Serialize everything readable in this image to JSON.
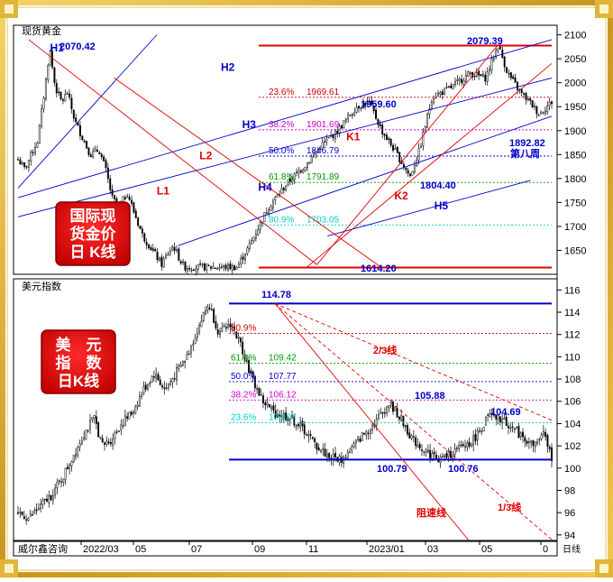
{
  "colors": {
    "frame_gold": "#d4a62a",
    "candle": "#000000",
    "red_line": "#e00000",
    "blue_line": "#0000c8",
    "badge_red": "#e00000",
    "badge_text": "#ffffff",
    "fib_236": "#cc0000",
    "fib_382": "#cc00cc",
    "fib_500": "#0000cc",
    "fib_618": "#009900",
    "fib_809": "#00cccc"
  },
  "chart_data": [
    {
      "type": "candlestick",
      "name": "gold",
      "panel_title": "现货黄金",
      "badge_lines": [
        "国际现",
        "货金价",
        "日 K线"
      ],
      "ylim": [
        1600,
        2120
      ],
      "y_ticks": [
        1650,
        1700,
        1750,
        1800,
        1850,
        1900,
        1950,
        2000,
        2050,
        2100
      ],
      "price_path": [
        [
          0,
          1840
        ],
        [
          0.03,
          1820
        ],
        [
          0.06,
          1850
        ],
        [
          0.09,
          1880
        ],
        [
          0.12,
          1980
        ],
        [
          0.145,
          2070
        ],
        [
          0.17,
          1990
        ],
        [
          0.2,
          1960
        ],
        [
          0.225,
          1980
        ],
        [
          0.26,
          1920
        ],
        [
          0.3,
          1880
        ],
        [
          0.33,
          1850
        ],
        [
          0.37,
          1860
        ],
        [
          0.4,
          1820
        ],
        [
          0.43,
          1760
        ],
        [
          0.46,
          1740
        ],
        [
          0.5,
          1770
        ],
        [
          0.53,
          1730
        ],
        [
          0.57,
          1680
        ],
        [
          0.6,
          1660
        ],
        [
          0.63,
          1640
        ],
        [
          0.655,
          1620
        ],
        [
          0.68,
          1640
        ],
        [
          0.71,
          1660
        ],
        [
          0.74,
          1630
        ],
        [
          0.76,
          1615
        ]
      ],
      "price_path_2": [
        [
          0,
          1615
        ],
        [
          0.04,
          1660
        ],
        [
          0.1,
          1740
        ],
        [
          0.16,
          1790
        ],
        [
          0.22,
          1830
        ],
        [
          0.27,
          1870
        ],
        [
          0.32,
          1900
        ],
        [
          0.38,
          1950
        ],
        [
          0.42,
          1960
        ],
        [
          0.46,
          1900
        ],
        [
          0.5,
          1860
        ],
        [
          0.55,
          1804
        ],
        [
          0.58,
          1860
        ],
        [
          0.62,
          1970
        ],
        [
          0.68,
          1990
        ],
        [
          0.74,
          2020
        ],
        [
          0.79,
          2010
        ],
        [
          0.83,
          2079
        ],
        [
          0.86,
          2020
        ],
        [
          0.9,
          1980
        ],
        [
          0.93,
          1960
        ],
        [
          0.96,
          1935
        ],
        [
          1.0,
          1960
        ]
      ],
      "labels": {
        "high_left": "2070.42",
        "high_right": "2079.39",
        "low_bottom": "1614.20",
        "low_mid": "1804.40",
        "pivot": "1959.60",
        "recent_low": "1892.82",
        "week_note": "第八周"
      },
      "fib_levels": [
        {
          "pct": "23.6%",
          "value": 1969.61,
          "label": "1969.61",
          "color_key": "fib_236"
        },
        {
          "pct": "38.2%",
          "value": 1901.69,
          "label": "1901.69",
          "color_key": "fib_382"
        },
        {
          "pct": "50.0%",
          "value": 1846.79,
          "label": "1846.79",
          "color_key": "fib_500"
        },
        {
          "pct": "61.8%",
          "value": 1791.89,
          "label": "1791.89",
          "color_key": "fib_618"
        },
        {
          "pct": "80.9%",
          "value": 1703.05,
          "label": "1703.05",
          "color_key": "fib_809"
        }
      ],
      "trendlines": [
        {
          "label": "H1",
          "color_key": "blue_line",
          "p1": [
            0,
            1780
          ],
          "p2": [
            0.26,
            2100
          ],
          "label_at": [
            0.06,
            2065
          ]
        },
        {
          "label": "H2",
          "color_key": "blue_line",
          "p1": [
            0,
            1760
          ],
          "p2": [
            1.0,
            2090
          ],
          "label_at": [
            0.38,
            2025
          ]
        },
        {
          "label": "H3",
          "color_key": "blue_line",
          "p1": [
            0,
            1720
          ],
          "p2": [
            1.0,
            2010
          ],
          "label_at": [
            0.42,
            1905
          ]
        },
        {
          "label": "H4",
          "color_key": "blue_line",
          "p1": [
            0.3,
            1660
          ],
          "p2": [
            1.0,
            1930
          ],
          "label_at": [
            0.45,
            1774
          ]
        },
        {
          "label": "H5",
          "color_key": "blue_line",
          "p1": [
            0.58,
            1680
          ],
          "p2": [
            0.96,
            1796
          ],
          "label_at": [
            0.78,
            1736
          ]
        },
        {
          "label": "L1",
          "color_key": "red_line",
          "p1": [
            0.02,
            2090
          ],
          "p2": [
            0.56,
            1620
          ],
          "label_at": [
            0.26,
            1767
          ]
        },
        {
          "label": "L2",
          "color_key": "red_line",
          "p1": [
            0.18,
            2010
          ],
          "p2": [
            0.68,
            1615
          ],
          "label_at": [
            0.34,
            1840
          ]
        },
        {
          "label": "K1",
          "color_key": "red_line",
          "p1": [
            0.56,
            1620
          ],
          "p2": [
            0.9,
            2080
          ],
          "label_at": [
            0.615,
            1880
          ]
        },
        {
          "label": "K2",
          "color_key": "red_line",
          "p1": [
            0.54,
            1614
          ],
          "p2": [
            1.0,
            2040
          ],
          "label_at": [
            0.705,
            1756
          ]
        }
      ]
    },
    {
      "type": "candlestick",
      "name": "dxy",
      "panel_title": "美元指数",
      "badge_lines": [
        "美　元",
        "指　数",
        "日K线"
      ],
      "ylim": [
        93.5,
        117
      ],
      "y_ticks": [
        94,
        96,
        98,
        100,
        102,
        104,
        106,
        108,
        110,
        112,
        114,
        116
      ],
      "x_ticks": [
        "2022/03",
        "05",
        "07",
        "09",
        "11",
        "2023/01",
        "03",
        "05",
        "0"
      ],
      "x_unit_note": "日线",
      "x_tick_pos": [
        0.14,
        0.26,
        0.4,
        0.53,
        0.66,
        0.8,
        0.89,
        0.98,
        1.0
      ],
      "price_path": [
        [
          0,
          96
        ],
        [
          0.04,
          95.5
        ],
        [
          0.08,
          96.5
        ],
        [
          0.12,
          97.5
        ],
        [
          0.16,
          99
        ],
        [
          0.2,
          101
        ],
        [
          0.24,
          103
        ],
        [
          0.28,
          104.5
        ],
        [
          0.31,
          102
        ],
        [
          0.34,
          102.5
        ],
        [
          0.38,
          104
        ],
        [
          0.42,
          105
        ],
        [
          0.46,
          107
        ],
        [
          0.5,
          108.5
        ],
        [
          0.54,
          107
        ],
        [
          0.58,
          108.5
        ],
        [
          0.62,
          110
        ],
        [
          0.66,
          112.5
        ],
        [
          0.7,
          114.78
        ],
        [
          0.74,
          112
        ],
        [
          0.78,
          113
        ],
        [
          0.82,
          111
        ],
        [
          0.86,
          108
        ],
        [
          0.9,
          106
        ],
        [
          0.94,
          105
        ],
        [
          1.0,
          104.5
        ]
      ],
      "price_path_2": [
        [
          0,
          104.5
        ],
        [
          0.05,
          103.5
        ],
        [
          0.1,
          102
        ],
        [
          0.15,
          101
        ],
        [
          0.2,
          100.79
        ],
        [
          0.26,
          102.5
        ],
        [
          0.32,
          104
        ],
        [
          0.38,
          105.88
        ],
        [
          0.42,
          104.5
        ],
        [
          0.47,
          102.5
        ],
        [
          0.52,
          101.5
        ],
        [
          0.57,
          100.76
        ],
        [
          0.63,
          101.5
        ],
        [
          0.7,
          102.5
        ],
        [
          0.76,
          104.69
        ],
        [
          0.82,
          104.2
        ],
        [
          0.88,
          103
        ],
        [
          0.93,
          102
        ],
        [
          0.97,
          103
        ],
        [
          1.0,
          101
        ]
      ],
      "labels": {
        "high": "114.78",
        "low_1": "100.79",
        "low_2": "100.76",
        "mid_high": "105.88",
        "recent_high": "104.69",
        "line_23": "2/3线",
        "line_13": "1/3线",
        "line_resist": "阻速线",
        "footer_credit": "威尔鑫咨询"
      },
      "fib_levels": [
        {
          "pct": "80.9%",
          "value": 112.1,
          "label": "",
          "color_key": "fib_236"
        },
        {
          "pct": "61.8%",
          "value": 109.42,
          "label": "109.42",
          "color_key": "fib_618"
        },
        {
          "pct": "50.0%",
          "value": 107.77,
          "label": "107.77",
          "color_key": "fib_500"
        },
        {
          "pct": "38.2%",
          "value": 106.12,
          "label": "106.12",
          "color_key": "fib_382"
        },
        {
          "pct": "23.6%",
          "value": 104.07,
          "label": "104.07",
          "color_key": "fib_809"
        }
      ]
    }
  ]
}
